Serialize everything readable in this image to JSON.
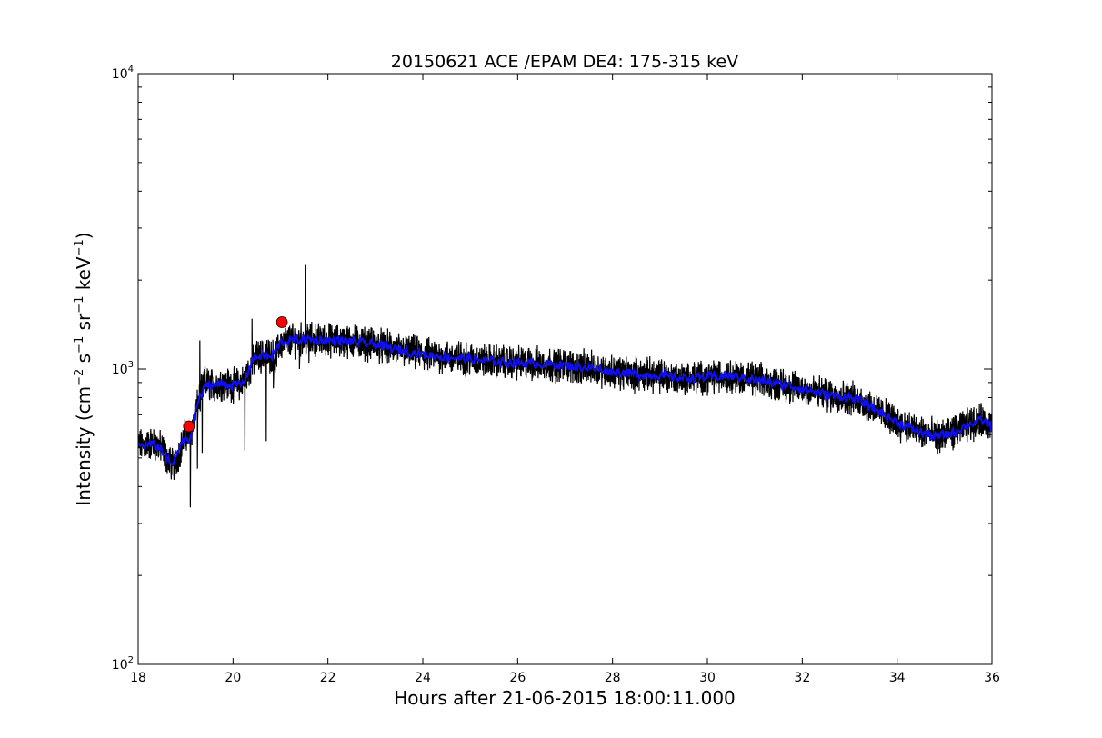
{
  "chart_data": {
    "type": "line",
    "title": "20150621 ACE /EPAM DE4: 175-315 keV",
    "xlabel": "Hours after 21-06-2015 18:00:11.000",
    "ylabel": {
      "prefix": "Intensity (cm",
      "exp1": "−2",
      "mid1": " s",
      "exp2": "−1",
      "mid2": " sr",
      "exp3": "−1",
      "mid3": " keV",
      "exp4": "−1",
      "suffix": ")"
    },
    "x_scale": "linear",
    "y_scale": "log",
    "xlim": [
      18,
      36
    ],
    "ylim": [
      100,
      10000
    ],
    "x_ticks": [
      18,
      20,
      22,
      24,
      26,
      28,
      30,
      32,
      34,
      36
    ],
    "y_ticks": [
      {
        "value": 100,
        "base": "10",
        "exp": "2"
      },
      {
        "value": 1000,
        "base": "10",
        "exp": "3"
      },
      {
        "value": 10000,
        "base": "10",
        "exp": "4"
      }
    ],
    "grid": false,
    "series": [
      {
        "style": "raw",
        "color": "#000000",
        "trend": [
          [
            18.0,
            550
          ],
          [
            18.3,
            560
          ],
          [
            18.5,
            540
          ],
          [
            18.6,
            500
          ],
          [
            18.75,
            470
          ],
          [
            18.9,
            540
          ],
          [
            19.0,
            600
          ],
          [
            19.1,
            590
          ],
          [
            19.2,
            700
          ],
          [
            19.3,
            800
          ],
          [
            19.4,
            900
          ],
          [
            19.6,
            880
          ],
          [
            19.8,
            900
          ],
          [
            20.0,
            880
          ],
          [
            20.2,
            900
          ],
          [
            20.35,
            1000
          ],
          [
            20.5,
            1100
          ],
          [
            20.7,
            1120
          ],
          [
            20.9,
            1100
          ],
          [
            21.0,
            1220
          ],
          [
            21.2,
            1250
          ],
          [
            21.5,
            1260
          ],
          [
            22.0,
            1250
          ],
          [
            22.5,
            1240
          ],
          [
            23.0,
            1210
          ],
          [
            23.5,
            1160
          ],
          [
            24.0,
            1120
          ],
          [
            24.5,
            1100
          ],
          [
            25.0,
            1080
          ],
          [
            25.5,
            1060
          ],
          [
            26.0,
            1050
          ],
          [
            26.5,
            1040
          ],
          [
            27.0,
            1030
          ],
          [
            27.5,
            1010
          ],
          [
            28.0,
            980
          ],
          [
            28.5,
            960
          ],
          [
            29.0,
            950
          ],
          [
            29.5,
            930
          ],
          [
            30.0,
            940
          ],
          [
            30.5,
            950
          ],
          [
            31.0,
            920
          ],
          [
            31.5,
            890
          ],
          [
            32.0,
            860
          ],
          [
            32.5,
            820
          ],
          [
            33.0,
            800
          ],
          [
            33.3,
            770
          ],
          [
            33.6,
            720
          ],
          [
            34.0,
            660
          ],
          [
            34.4,
            620
          ],
          [
            34.8,
            590
          ],
          [
            35.2,
            610
          ],
          [
            35.5,
            650
          ],
          [
            35.8,
            670
          ],
          [
            36.0,
            640
          ]
        ],
        "spikes": [
          [
            19.1,
            340
          ],
          [
            19.25,
            460
          ],
          [
            19.3,
            1250
          ],
          [
            19.35,
            520
          ],
          [
            20.25,
            530
          ],
          [
            20.4,
            1480
          ],
          [
            20.7,
            570
          ],
          [
            20.85,
            860
          ],
          [
            21.4,
            1000
          ],
          [
            21.52,
            2250
          ],
          [
            21.6,
            1050
          ],
          [
            23.2,
            1300
          ],
          [
            24.6,
            980
          ],
          [
            27.5,
            1080
          ],
          [
            29.2,
            860
          ],
          [
            30.2,
            900
          ],
          [
            31.3,
            850
          ],
          [
            32.5,
            770
          ],
          [
            33.4,
            820
          ],
          [
            34.9,
            520
          ]
        ]
      },
      {
        "style": "smoothed",
        "color": "#1010ee",
        "trend": [
          [
            18.0,
            550
          ],
          [
            18.3,
            555
          ],
          [
            18.5,
            535
          ],
          [
            18.6,
            500
          ],
          [
            18.7,
            470
          ],
          [
            18.8,
            510
          ],
          [
            18.9,
            550
          ],
          [
            19.0,
            590
          ],
          [
            19.1,
            570
          ],
          [
            19.2,
            720
          ],
          [
            19.3,
            800
          ],
          [
            19.45,
            890
          ],
          [
            19.6,
            880
          ],
          [
            19.8,
            895
          ],
          [
            20.0,
            880
          ],
          [
            20.2,
            890
          ],
          [
            20.3,
            960
          ],
          [
            20.4,
            1080
          ],
          [
            20.6,
            1110
          ],
          [
            20.8,
            1090
          ],
          [
            21.0,
            1230
          ],
          [
            21.2,
            1250
          ],
          [
            21.5,
            1260
          ],
          [
            22.0,
            1250
          ],
          [
            22.5,
            1240
          ],
          [
            23.0,
            1210
          ],
          [
            23.5,
            1160
          ],
          [
            24.0,
            1120
          ],
          [
            24.5,
            1100
          ],
          [
            25.0,
            1080
          ],
          [
            25.5,
            1060
          ],
          [
            26.0,
            1050
          ],
          [
            26.5,
            1040
          ],
          [
            27.0,
            1030
          ],
          [
            27.5,
            1010
          ],
          [
            28.0,
            980
          ],
          [
            28.5,
            960
          ],
          [
            29.0,
            950
          ],
          [
            29.5,
            930
          ],
          [
            30.0,
            940
          ],
          [
            30.5,
            950
          ],
          [
            31.0,
            920
          ],
          [
            31.5,
            890
          ],
          [
            32.0,
            860
          ],
          [
            32.5,
            820
          ],
          [
            33.0,
            800
          ],
          [
            33.3,
            770
          ],
          [
            33.6,
            720
          ],
          [
            34.0,
            660
          ],
          [
            34.4,
            620
          ],
          [
            34.8,
            590
          ],
          [
            35.2,
            610
          ],
          [
            35.5,
            650
          ],
          [
            35.8,
            670
          ],
          [
            36.0,
            640
          ]
        ]
      }
    ],
    "markers": [
      {
        "x": 19.07,
        "y": 640,
        "color": "#ff0000"
      },
      {
        "x": 21.03,
        "y": 1440,
        "color": "#ff0000"
      }
    ]
  }
}
